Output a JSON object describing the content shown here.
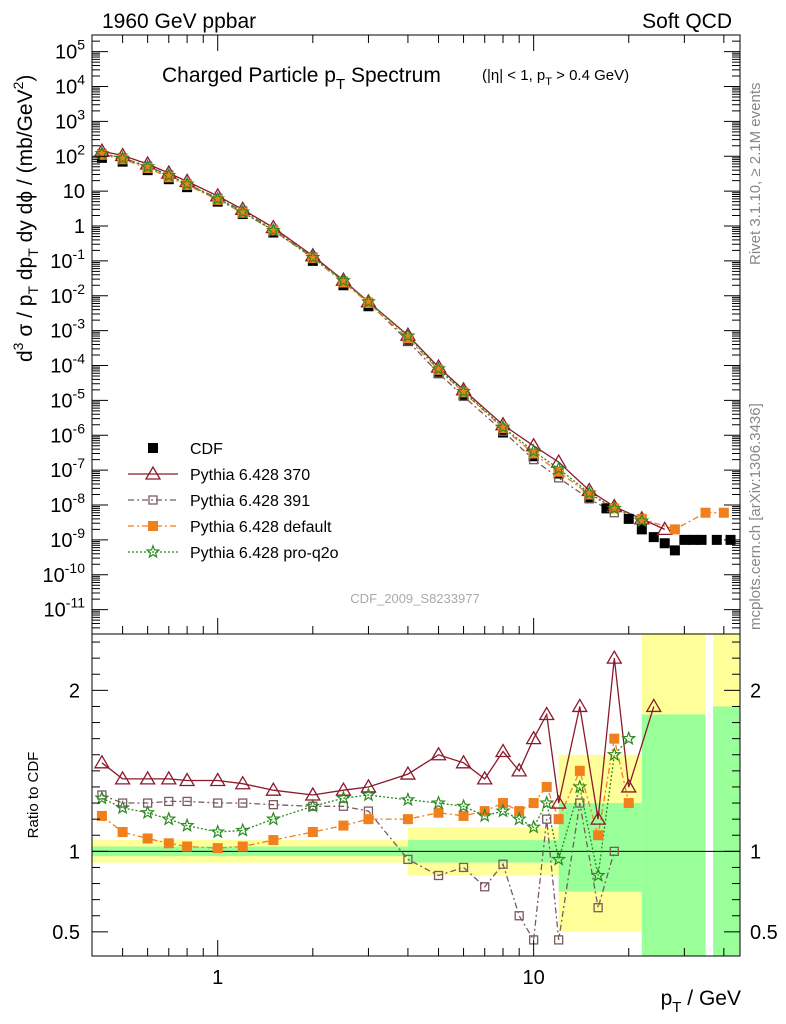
{
  "header": {
    "left": "1960 GeV ppbar",
    "right": "Soft QCD"
  },
  "side_labels": {
    "rivet": "Rivet 3.1.10, ≥ 2.1M events",
    "mcplots": "mcplots.cern.ch [arXiv:1306.3436]"
  },
  "chart_data": [
    {
      "type": "scatter",
      "panel": "main",
      "title": {
        "main": "Charged Particle p",
        "sub": "T",
        "rest": " Spectrum",
        "cut": "(|η| < 1, p",
        "cut_sub": "T",
        "cut_rest": " > 0.4 GeV)"
      },
      "ylabel": "d³σ / p_T dp_T dy dϕ / (mb/GeV²)",
      "xlabel": "p_T / GeV",
      "xscale": "log",
      "yscale": "log",
      "xlim": [
        0.4,
        45
      ],
      "ylim": [
        2e-12,
        300000.0
      ],
      "x_ticks": [
        {
          "v": 1,
          "label": "1"
        },
        {
          "v": 10,
          "label": "10"
        }
      ],
      "y_ticks": [
        {
          "e": 5,
          "label": "10^5"
        },
        {
          "e": 4,
          "label": "10^4"
        },
        {
          "e": 3,
          "label": "10^3"
        },
        {
          "e": 2,
          "label": "10^2"
        },
        {
          "e": 1,
          "label": "10"
        },
        {
          "e": 0,
          "label": "1"
        },
        {
          "e": -1,
          "label": "10^-1"
        },
        {
          "e": -2,
          "label": "10^-2"
        },
        {
          "e": -3,
          "label": "10^-3"
        },
        {
          "e": -4,
          "label": "10^-4"
        },
        {
          "e": -5,
          "label": "10^-5"
        },
        {
          "e": -6,
          "label": "10^-6"
        },
        {
          "e": -7,
          "label": "10^-7"
        },
        {
          "e": -8,
          "label": "10^-8"
        },
        {
          "e": -9,
          "label": "10^-9"
        },
        {
          "e": -10,
          "label": "10^-10"
        },
        {
          "e": -11,
          "label": "10^-11"
        }
      ],
      "watermark": "CDF_2009_S8233977",
      "legend_position": "bottom-left",
      "series": [
        {
          "name": "CDF",
          "color": "#000000",
          "marker": "filled-square",
          "line": "none",
          "x": [
            0.43,
            0.5,
            0.6,
            0.7,
            0.8,
            1.0,
            1.2,
            1.5,
            2.0,
            2.5,
            3.0,
            4.0,
            5.0,
            6.0,
            8.0,
            10.0,
            12.0,
            15.0,
            17.0,
            20.0,
            22.0,
            24.0,
            26.0,
            28.0,
            30.0,
            32.0,
            34.0,
            38.0,
            42.0
          ],
          "y": [
            90,
            70,
            40,
            22,
            13,
            5,
            2.2,
            0.65,
            0.1,
            0.02,
            0.005,
            0.0005,
            6e-05,
            1.4e-05,
            1.2e-06,
            2.5e-07,
            8e-08,
            1.6e-08,
            8e-09,
            4e-09,
            2e-09,
            1.2e-09,
            8e-10,
            5e-10,
            1e-09,
            1e-09,
            1e-09,
            1e-09,
            1e-09
          ]
        },
        {
          "name": "Pythia 6.428 370",
          "color": "#8b1a2b",
          "marker": "open-triangle",
          "line": "solid",
          "x": [
            0.43,
            0.5,
            0.6,
            0.7,
            0.8,
            1.0,
            1.2,
            1.5,
            2.0,
            2.5,
            3.0,
            4.0,
            5.0,
            6.0,
            8.0,
            10.0,
            12.0,
            15.0,
            18.0,
            22.0,
            26.0
          ],
          "y": [
            140,
            105,
            60,
            33,
            19,
            7.3,
            3.0,
            0.9,
            0.14,
            0.028,
            0.0067,
            0.00074,
            9e-05,
            2e-05,
            2e-06,
            5e-07,
            1.7e-07,
            2.6e-08,
            9e-09,
            4e-09,
            2e-09
          ]
        },
        {
          "name": "Pythia 6.428 391",
          "color": "#7b5a60",
          "marker": "open-square",
          "line": "dash-dot",
          "x": [
            0.43,
            0.5,
            0.6,
            0.7,
            0.8,
            1.0,
            1.2,
            1.5,
            2.0,
            2.5,
            3.0,
            4.0,
            5.0,
            6.0,
            8.0,
            10.0,
            12.0,
            15.0,
            18.0
          ],
          "y": [
            120,
            90,
            52,
            29,
            16,
            6.3,
            2.7,
            0.8,
            0.13,
            0.026,
            0.0065,
            0.0005,
            6e-05,
            1.3e-05,
            1.3e-06,
            2e-07,
            6e-08,
            1.5e-08,
            6e-09
          ]
        },
        {
          "name": "Pythia 6.428 default",
          "color": "#f07f1e",
          "marker": "filled-square",
          "line": "dash-dot",
          "x": [
            0.43,
            0.5,
            0.6,
            0.7,
            0.8,
            1.0,
            1.2,
            1.5,
            2.0,
            2.5,
            3.0,
            4.0,
            5.0,
            6.0,
            8.0,
            10.0,
            12.0,
            15.0,
            18.0,
            22.0,
            28.0,
            35.0,
            40.0
          ],
          "y": [
            110,
            82,
            46,
            25,
            15,
            5.6,
            2.4,
            0.75,
            0.12,
            0.024,
            0.0062,
            0.0006,
            7.5e-05,
            1.7e-05,
            1.6e-06,
            3e-07,
            9e-08,
            2e-08,
            8e-09,
            4e-09,
            2e-09,
            6e-09,
            6e-09
          ]
        },
        {
          "name": "Pythia 6.428 pro-q2o",
          "color": "#2a8a1f",
          "marker": "open-star",
          "line": "dotted",
          "x": [
            0.43,
            0.5,
            0.6,
            0.7,
            0.8,
            1.0,
            1.2,
            1.5,
            2.0,
            2.5,
            3.0,
            4.0,
            5.0,
            6.0,
            8.0,
            10.0,
            12.0,
            15.0,
            18.0,
            22.0
          ],
          "y": [
            120,
            88,
            50,
            28,
            16,
            6.0,
            2.5,
            0.75,
            0.125,
            0.027,
            0.0067,
            0.0007,
            8e-05,
            1.8e-05,
            1.7e-06,
            3.5e-07,
            1.1e-07,
            2.2e-08,
            8e-09,
            3.5e-09
          ]
        }
      ]
    },
    {
      "type": "line",
      "panel": "ratio",
      "ylabel": "Ratio to CDF",
      "xscale": "log",
      "xlim": [
        0.4,
        45
      ],
      "ylim": [
        0.35,
        2.35
      ],
      "y_ticks": [
        {
          "v": 0.5,
          "label": "0.5"
        },
        {
          "v": 1,
          "label": "1"
        },
        {
          "v": 2,
          "label": "2"
        }
      ],
      "series": [
        {
          "name": "Pythia 6.428 370",
          "x": [
            0.43,
            0.5,
            0.6,
            0.7,
            0.8,
            1.0,
            1.2,
            1.5,
            2.0,
            2.5,
            3.0,
            4.0,
            5.0,
            6.0,
            7.0,
            8.0,
            9.0,
            10.0,
            11.0,
            12.0,
            14.0,
            16.0,
            18.0,
            20.0,
            24.0
          ],
          "y": [
            1.55,
            1.45,
            1.45,
            1.45,
            1.44,
            1.44,
            1.42,
            1.38,
            1.35,
            1.38,
            1.4,
            1.48,
            1.6,
            1.55,
            1.45,
            1.62,
            1.5,
            1.7,
            1.85,
            1.3,
            1.9,
            1.2,
            2.2,
            1.4,
            1.9
          ]
        },
        {
          "name": "Pythia 6.428 391",
          "x": [
            0.43,
            0.5,
            0.6,
            0.7,
            0.8,
            1.0,
            1.2,
            1.5,
            2.0,
            2.5,
            3.0,
            4.0,
            5.0,
            6.0,
            7.0,
            8.0,
            9.0,
            10.0,
            11.0,
            12.0,
            14.0,
            16.0,
            18.0
          ],
          "y": [
            1.35,
            1.3,
            1.3,
            1.31,
            1.31,
            1.3,
            1.3,
            1.29,
            1.28,
            1.28,
            1.25,
            0.95,
            0.85,
            0.9,
            0.78,
            0.92,
            0.6,
            0.45,
            1.2,
            0.45,
            1.3,
            0.65,
            1.0
          ]
        },
        {
          "name": "Pythia 6.428 default",
          "x": [
            0.43,
            0.5,
            0.6,
            0.7,
            0.8,
            1.0,
            1.2,
            1.5,
            2.0,
            2.5,
            3.0,
            4.0,
            5.0,
            6.0,
            7.0,
            8.0,
            9.0,
            10.0,
            11.0,
            12.0,
            14.0,
            16.0,
            18.0,
            20.0
          ],
          "y": [
            1.22,
            1.12,
            1.08,
            1.05,
            1.03,
            1.02,
            1.03,
            1.07,
            1.12,
            1.16,
            1.2,
            1.2,
            1.24,
            1.22,
            1.25,
            1.3,
            1.25,
            1.3,
            1.4,
            1.2,
            1.5,
            1.1,
            1.7,
            1.3
          ]
        },
        {
          "name": "Pythia 6.428 pro-q2o",
          "x": [
            0.43,
            0.5,
            0.6,
            0.7,
            0.8,
            1.0,
            1.2,
            1.5,
            2.0,
            2.5,
            3.0,
            4.0,
            5.0,
            6.0,
            7.0,
            8.0,
            9.0,
            10.0,
            11.0,
            12.0,
            14.0,
            16.0,
            18.0,
            20.0
          ],
          "y": [
            1.33,
            1.27,
            1.24,
            1.2,
            1.16,
            1.12,
            1.13,
            1.2,
            1.28,
            1.33,
            1.35,
            1.32,
            1.3,
            1.28,
            1.22,
            1.25,
            1.2,
            1.15,
            1.3,
            0.95,
            1.4,
            0.85,
            1.6,
            1.7
          ]
        }
      ]
    }
  ]
}
